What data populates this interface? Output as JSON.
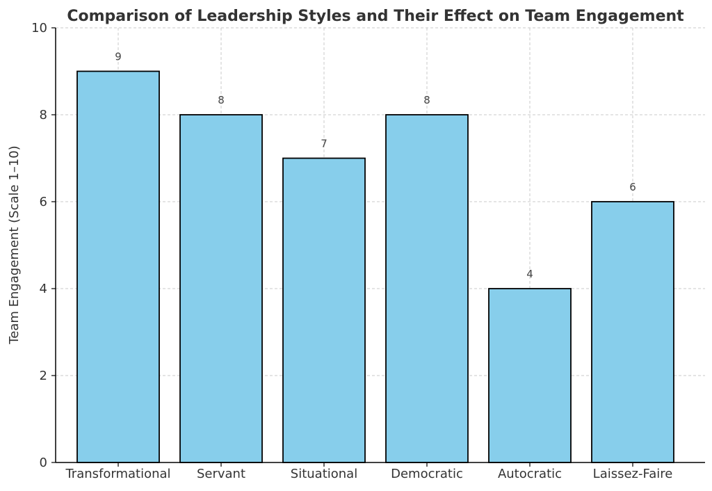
{
  "chart_data": {
    "type": "bar",
    "title": "Comparison of Leadership Styles and Their Effect on Team Engagement",
    "xlabel": "",
    "ylabel": "Team Engagement (Scale 1–10)",
    "categories": [
      "Transformational",
      "Servant",
      "Situational",
      "Democratic",
      "Autocratic",
      "Laissez-Faire"
    ],
    "values": [
      9,
      8,
      7,
      8,
      4,
      6
    ],
    "data_labels": [
      "9",
      "8",
      "7",
      "8",
      "4",
      "6"
    ],
    "ylim": [
      0,
      10
    ],
    "yticks": [
      0,
      2,
      4,
      6,
      8,
      10
    ],
    "ytick_labels": [
      "0",
      "2",
      "4",
      "6",
      "8",
      "10"
    ],
    "grid": true,
    "bar_color": "#87CEEB",
    "bar_edge_color": "#000000"
  }
}
